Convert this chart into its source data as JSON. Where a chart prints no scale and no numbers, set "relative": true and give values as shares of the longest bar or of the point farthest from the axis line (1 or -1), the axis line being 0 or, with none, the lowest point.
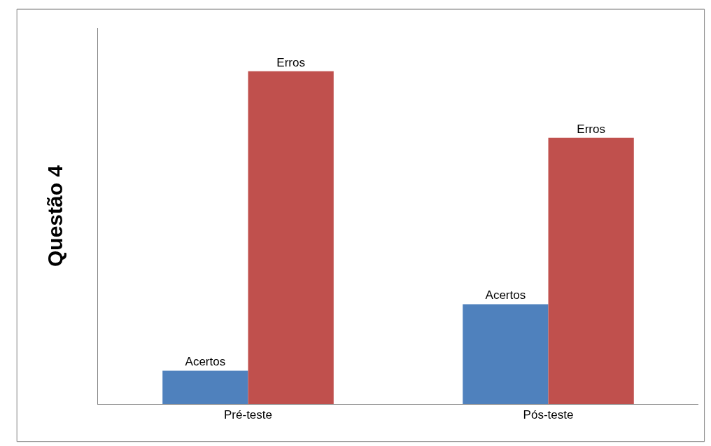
{
  "chart_data": {
    "type": "bar",
    "relative": true,
    "ylabel": "Questão 4",
    "categories": [
      "Pré-teste",
      "Pós-teste"
    ],
    "series": [
      {
        "name": "Acertos",
        "color": "#4f81bd",
        "values": [
          0.1,
          0.3
        ]
      },
      {
        "name": "Erros",
        "color": "#c0504d",
        "values": [
          1,
          0.8
        ]
      }
    ],
    "legend": false
  }
}
